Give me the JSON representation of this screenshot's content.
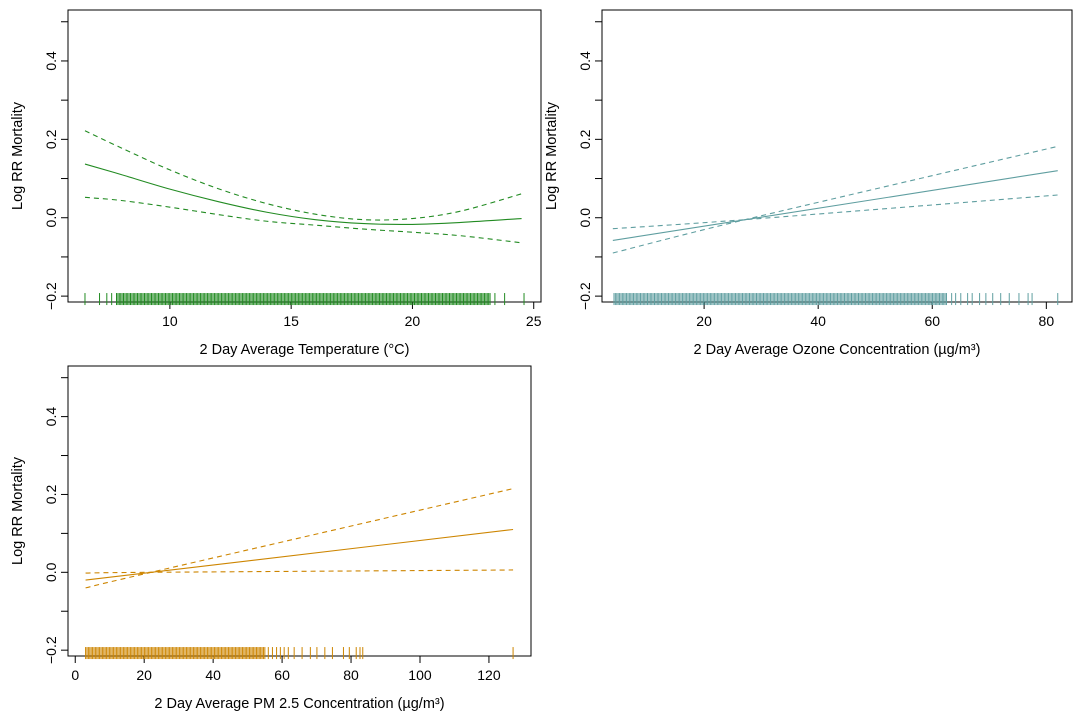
{
  "chart_data": [
    {
      "type": "line",
      "xlabel": "2 Day Average Temperature (°C)",
      "ylabel": "Log RR Mortality",
      "xlim": [
        5.8,
        25.3
      ],
      "ylim": [
        -0.215,
        0.53
      ],
      "xticks": [
        10,
        15,
        20,
        25
      ],
      "yticks": [
        -0.2,
        0.0,
        0.2,
        0.4
      ],
      "color": "#228b22",
      "series": [
        {
          "role": "estimate",
          "linestyle": "solid",
          "x": [
            6.5,
            8,
            10,
            12,
            14,
            16,
            18,
            20,
            22,
            24.5
          ],
          "y": [
            0.137,
            0.11,
            0.073,
            0.041,
            0.014,
            -0.005,
            -0.015,
            -0.017,
            -0.012,
            -0.002
          ]
        },
        {
          "role": "upper-ci",
          "linestyle": "dashed",
          "x": [
            6.5,
            8,
            10,
            12,
            14,
            16,
            18,
            20,
            22,
            24.5
          ],
          "y": [
            0.222,
            0.178,
            0.122,
            0.074,
            0.036,
            0.009,
            -0.005,
            -0.002,
            0.017,
            0.061
          ]
        },
        {
          "role": "lower-ci",
          "linestyle": "dashed",
          "x": [
            6.5,
            8,
            10,
            12,
            14,
            16,
            18,
            20,
            22,
            24.5
          ],
          "y": [
            0.052,
            0.044,
            0.027,
            0.008,
            -0.009,
            -0.019,
            -0.029,
            -0.037,
            -0.046,
            -0.064
          ]
        }
      ],
      "rug": {
        "y": -0.21,
        "dense_range": [
          7.8,
          23.2
        ],
        "sparse": [
          6.5,
          7.1,
          7.4,
          7.6,
          23.4,
          23.8,
          24.6
        ]
      }
    },
    {
      "type": "line",
      "xlabel": "2 Day Average Ozone Concentration (µg/m³)",
      "ylabel": "Log RR Mortality",
      "xlim": [
        2.1,
        84.5
      ],
      "ylim": [
        -0.215,
        0.53
      ],
      "xticks": [
        20,
        40,
        60,
        80
      ],
      "yticks": [
        -0.2,
        0.0,
        0.2,
        0.4
      ],
      "color": "#5f9ea0",
      "series": [
        {
          "role": "estimate",
          "linestyle": "solid",
          "x": [
            4,
            82
          ],
          "y": [
            -0.058,
            0.12
          ]
        },
        {
          "role": "upper-ci",
          "linestyle": "dashed",
          "x": [
            4,
            28,
            82
          ],
          "y": [
            -0.09,
            -0.002,
            0.182
          ]
        },
        {
          "role": "lower-ci",
          "linestyle": "dashed",
          "x": [
            4,
            28,
            82
          ],
          "y": [
            -0.028,
            -0.004,
            0.058
          ]
        }
      ],
      "rug": {
        "y": -0.21,
        "dense_range": [
          4.2,
          62.5
        ],
        "sparse": [
          63.4,
          64.1,
          65,
          66.2,
          67,
          68.3,
          69.4,
          70.6,
          72,
          73.5,
          75.2,
          76.8,
          77.5,
          82
        ]
      }
    },
    {
      "type": "line",
      "xlabel": "2 Day Average PM 2.5 Concentration (µg/m³)",
      "ylabel": "Log RR Mortality",
      "xlim": [
        -2.1,
        132.2
      ],
      "ylim": [
        -0.215,
        0.53
      ],
      "xticks": [
        0,
        20,
        40,
        60,
        80,
        100,
        120
      ],
      "yticks": [
        -0.2,
        0.0,
        0.2,
        0.4
      ],
      "color": "#cd8500",
      "series": [
        {
          "role": "estimate",
          "linestyle": "solid",
          "x": [
            3,
            127
          ],
          "y": [
            -0.02,
            0.11
          ]
        },
        {
          "role": "upper-ci",
          "linestyle": "dashed",
          "x": [
            3,
            22,
            127
          ],
          "y": [
            -0.04,
            0.0,
            0.215
          ]
        },
        {
          "role": "lower-ci",
          "linestyle": "dashed",
          "x": [
            3,
            22,
            127
          ],
          "y": [
            -0.002,
            0.0,
            0.006
          ]
        }
      ],
      "rug": {
        "y": -0.21,
        "dense_range": [
          3,
          55
        ],
        "sparse": [
          56,
          57.2,
          58.4,
          59.5,
          60.6,
          61.8,
          63.5,
          65.8,
          68.2,
          70.1,
          72.4,
          74.6,
          77.8,
          79.5,
          81.5,
          82.6,
          83.4,
          127
        ]
      }
    }
  ]
}
